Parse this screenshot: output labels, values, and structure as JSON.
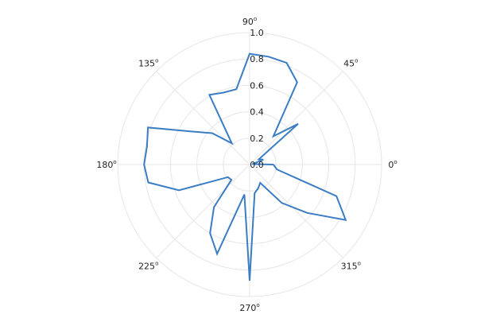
{
  "chart_data": {
    "type": "line",
    "projection": "polar",
    "grid": true,
    "legend": "none",
    "rlim": [
      0,
      1
    ],
    "angle_ticks": [
      {
        "deg": 0,
        "label": "0",
        "sup": "o"
      },
      {
        "deg": 45,
        "label": "45",
        "sup": "o"
      },
      {
        "deg": 90,
        "label": "90",
        "sup": "o"
      },
      {
        "deg": 135,
        "label": "135",
        "sup": "o"
      },
      {
        "deg": 180,
        "label": "180",
        "sup": "o"
      },
      {
        "deg": 225,
        "label": "225",
        "sup": "o"
      },
      {
        "deg": 270,
        "label": "270",
        "sup": "o"
      },
      {
        "deg": 315,
        "label": "315",
        "sup": "o"
      }
    ],
    "r_ticks": [
      {
        "value": 0.0,
        "label": "0.0"
      },
      {
        "value": 0.2,
        "label": "0.2"
      },
      {
        "value": 0.4,
        "label": "0.4"
      },
      {
        "value": 0.6,
        "label": "0.6"
      },
      {
        "value": 0.8,
        "label": "0.8"
      },
      {
        "value": 1.0,
        "label": "1.0"
      }
    ],
    "series": [
      {
        "color": "#3a7dc4",
        "theta_deg": [
          0,
          10,
          20,
          30,
          40,
          50,
          60,
          70,
          80,
          90,
          100,
          110,
          120,
          130,
          140,
          150,
          160,
          170,
          180,
          190,
          200,
          210,
          220,
          230,
          240,
          250,
          260,
          270,
          280,
          290,
          300,
          310,
          320,
          330,
          340,
          350,
          360
        ],
        "r": [
          0.18,
          0.02,
          0.11,
          0.08,
          0.48,
          0.28,
          0.72,
          0.82,
          0.83,
          0.84,
          0.58,
          0.58,
          0.61,
          0.21,
          0.37,
          0.5,
          0.82,
          0.79,
          0.8,
          0.78,
          0.57,
          0.19,
          0.18,
          0.42,
          0.6,
          0.72,
          0.23,
          0.88,
          0.22,
          0.19,
          0.16,
          0.38,
          0.57,
          0.84,
          0.7,
          0.21,
          0.18
        ]
      }
    ]
  }
}
